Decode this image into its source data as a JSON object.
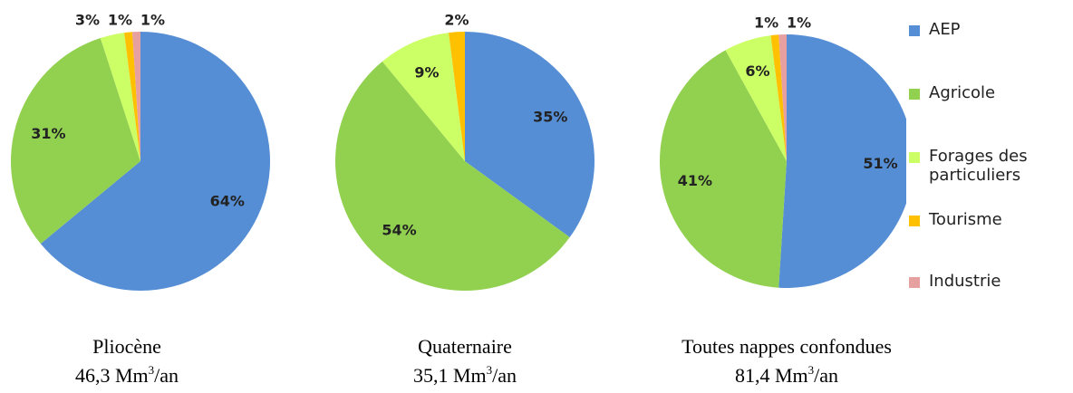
{
  "chart_data": [
    {
      "type": "pie",
      "categories": [
        "AEP",
        "Agricole",
        "Forages des particuliers",
        "Tourisme",
        "Industrie"
      ],
      "values": [
        64,
        31,
        3,
        1,
        1
      ],
      "value_labels": [
        "64%",
        "31%",
        "3%",
        "1%",
        "1%"
      ],
      "colors": [
        "#558ed5",
        "#92d050",
        "#ccff66",
        "#ffc000",
        "#e6a0a0"
      ],
      "caption": {
        "name": "Pliocène",
        "volume": "46,3 Mm",
        "exponent": "3",
        "unit": "/an"
      }
    },
    {
      "type": "pie",
      "categories": [
        "AEP",
        "Agricole",
        "Forages des particuliers",
        "Tourisme"
      ],
      "values": [
        35,
        54,
        9,
        2
      ],
      "value_labels": [
        "35%",
        "54%",
        "9%",
        "2%"
      ],
      "colors": [
        "#558ed5",
        "#92d050",
        "#ccff66",
        "#ffc000"
      ],
      "caption": {
        "name": "Quaternaire",
        "volume": "35,1 Mm",
        "exponent": "3",
        "unit": "/an"
      }
    },
    {
      "type": "pie",
      "categories": [
        "AEP",
        "Agricole",
        "Forages des particuliers",
        "Tourisme",
        "Industrie"
      ],
      "values": [
        51,
        41,
        6,
        1,
        1
      ],
      "value_labels": [
        "51%",
        "41%",
        "6%",
        "1%",
        "1%"
      ],
      "colors": [
        "#558ed5",
        "#92d050",
        "#ccff66",
        "#ffc000",
        "#e6a0a0"
      ],
      "caption": {
        "name": "Toutes nappes confondues",
        "volume": "81,4 Mm",
        "exponent": "3",
        "unit": "/an"
      }
    }
  ]
}
